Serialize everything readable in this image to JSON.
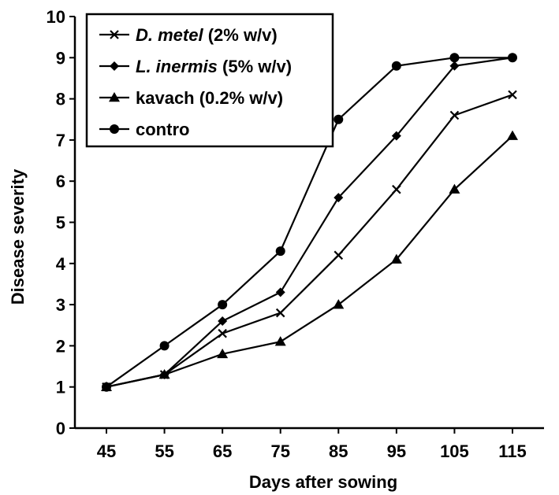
{
  "chart_data": {
    "type": "line",
    "title": "",
    "xlabel": "Days after sowing",
    "ylabel": "Disease severity",
    "x": [
      45,
      55,
      65,
      75,
      85,
      95,
      105,
      115
    ],
    "ylim": [
      0,
      10
    ],
    "yticks": [
      0,
      1,
      2,
      3,
      4,
      5,
      6,
      7,
      8,
      9,
      10
    ],
    "xticks": [
      "45",
      "55",
      "65",
      "75",
      "85",
      "95",
      "105",
      "115"
    ],
    "grid": false,
    "legend_position": "top-left",
    "series": [
      {
        "name": "D. metel (2% w/v)",
        "name_parts": [
          {
            "text": "D. metel",
            "italic": true
          },
          {
            "text": " (2% w/v)",
            "italic": false
          }
        ],
        "marker": "x",
        "values": [
          1.0,
          1.3,
          2.3,
          2.8,
          4.2,
          5.8,
          7.6,
          8.1
        ]
      },
      {
        "name": "L. inermis (5% w/v)",
        "name_parts": [
          {
            "text": "L. inermis",
            "italic": true
          },
          {
            "text": " (5% w/v)",
            "italic": false
          }
        ],
        "marker": "diamond",
        "values": [
          1.0,
          1.3,
          2.6,
          3.3,
          5.6,
          7.1,
          8.8,
          9.0
        ]
      },
      {
        "name": "kavach (0.2% w/v)",
        "name_parts": [
          {
            "text": "kavach (0.2% w/v)",
            "italic": false
          }
        ],
        "marker": "triangle",
        "values": [
          1.0,
          1.3,
          1.8,
          2.1,
          3.0,
          4.1,
          5.8,
          7.1
        ]
      },
      {
        "name": "contro",
        "name_parts": [
          {
            "text": "contro",
            "italic": false
          }
        ],
        "marker": "circle",
        "values": [
          1.0,
          2.0,
          3.0,
          4.3,
          7.5,
          8.8,
          9.0,
          9.0
        ]
      }
    ]
  }
}
